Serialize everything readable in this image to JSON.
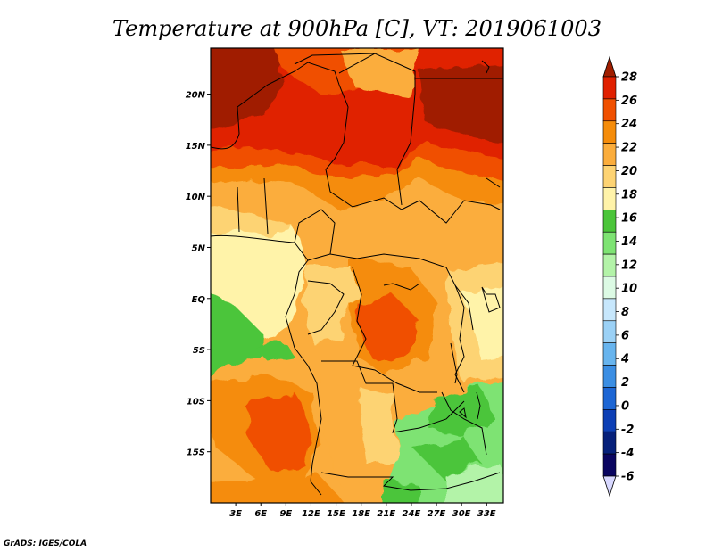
{
  "title": "Temperature at 900hPa [C], VT: 2019061003",
  "credit": "GrADS: IGES/COLA",
  "lat_labels": [
    "20N",
    "15N",
    "10N",
    "5N",
    "EQ",
    "5S",
    "10S",
    "15S"
  ],
  "lon_labels": [
    "3E",
    "6E",
    "9E",
    "12E",
    "15E",
    "18E",
    "21E",
    "24E",
    "27E",
    "30E",
    "33E"
  ],
  "colorbar": {
    "ticks": [
      "28",
      "26",
      "24",
      "22",
      "20",
      "18",
      "16",
      "14",
      "12",
      "10",
      "8",
      "6",
      "4",
      "2",
      "0",
      "-2",
      "-4",
      "-6"
    ],
    "colors": [
      "#a01e00",
      "#e02000",
      "#f05000",
      "#f58c0a",
      "#fbad3c",
      "#fdd373",
      "#fff3a9",
      "#4bc53a",
      "#7ee373",
      "#b3f3a8",
      "#dcfae4",
      "#c7e7fc",
      "#9bd1f6",
      "#67b4ee",
      "#3b8ee3",
      "#1d66d4",
      "#0d3fb5",
      "#06207a",
      "#0a0560",
      "#d8d8ff"
    ]
  },
  "map": {
    "lon_range": [
      0,
      35
    ],
    "lat_range": [
      -20,
      24.5
    ],
    "variable": "Temperature at 900hPa",
    "units": "C",
    "valid_time": "2019061003"
  }
}
